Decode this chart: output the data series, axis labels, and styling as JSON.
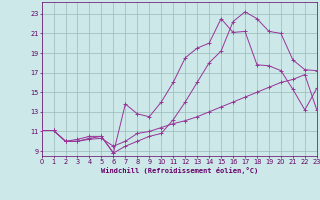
{
  "bg_color": "#cce8e8",
  "grid_color": "#99bbbb",
  "line_color": "#993399",
  "xlabel": "Windchill (Refroidissement éolien,°C)",
  "xlabel_color": "#660066",
  "tick_color": "#660066",
  "xlim": [
    0,
    23
  ],
  "ylim": [
    8.5,
    24.2
  ],
  "xticks": [
    0,
    1,
    2,
    3,
    4,
    5,
    6,
    7,
    8,
    9,
    10,
    11,
    12,
    13,
    14,
    15,
    16,
    17,
    18,
    19,
    20,
    21,
    22,
    23
  ],
  "yticks": [
    9,
    11,
    13,
    15,
    17,
    19,
    21,
    23
  ],
  "curve_peak_x": [
    0,
    1,
    2,
    3,
    4,
    5,
    6,
    7,
    8,
    9,
    10,
    11,
    12,
    13,
    14,
    15,
    16,
    17,
    18,
    19,
    20,
    21,
    22,
    23
  ],
  "curve_peak_y": [
    11.1,
    11.1,
    10.0,
    10.2,
    10.5,
    10.5,
    8.8,
    13.8,
    12.8,
    12.5,
    14.0,
    16.0,
    18.5,
    19.5,
    20.0,
    22.5,
    21.1,
    21.2,
    17.8,
    17.7,
    17.2,
    15.3,
    13.2,
    15.4
  ],
  "curve_arch_x": [
    0,
    1,
    2,
    3,
    4,
    5,
    6,
    7,
    8,
    9,
    10,
    11,
    12,
    13,
    14,
    15,
    16,
    17,
    18,
    19,
    20,
    21,
    22,
    23
  ],
  "curve_arch_y": [
    11.1,
    11.1,
    10.0,
    10.0,
    10.3,
    10.5,
    8.8,
    9.5,
    10.0,
    10.5,
    10.8,
    12.2,
    14.0,
    16.0,
    18.0,
    19.2,
    22.2,
    23.2,
    22.5,
    21.2,
    21.0,
    18.3,
    17.3,
    17.2
  ],
  "curve_linear_x": [
    0,
    1,
    2,
    3,
    4,
    5,
    6,
    7,
    8,
    9,
    10,
    11,
    12,
    13,
    14,
    15,
    16,
    17,
    18,
    19,
    20,
    21,
    22,
    23
  ],
  "curve_linear_y": [
    11.1,
    11.1,
    10.0,
    10.0,
    10.2,
    10.3,
    9.5,
    10.0,
    10.8,
    11.0,
    11.4,
    11.8,
    12.1,
    12.5,
    13.0,
    13.5,
    14.0,
    14.5,
    15.0,
    15.5,
    16.0,
    16.3,
    16.8,
    13.2
  ]
}
